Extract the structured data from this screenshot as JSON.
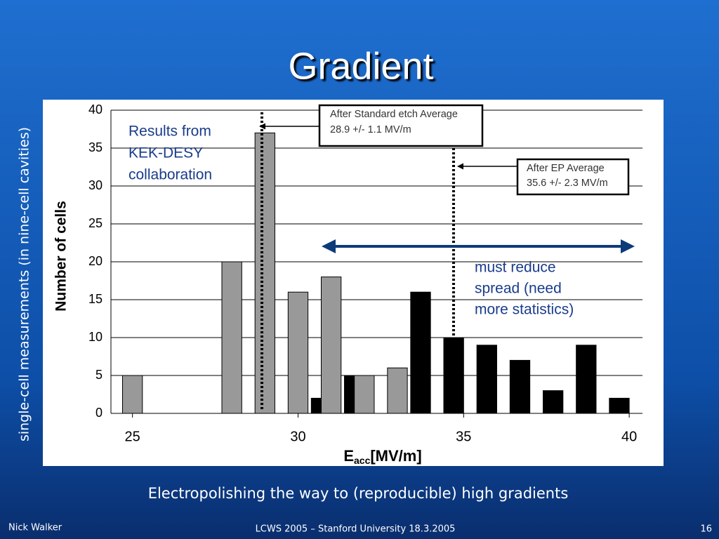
{
  "title": "Gradient",
  "side_label": "single-cell measurements (in nine-cell cavities)",
  "caption": "Electropolishing the way to (reproducible) high gradients",
  "footer": {
    "author": "Nick Walker",
    "event": "LCWS 2005 – Stanford University 18.3.2005",
    "page": "16"
  },
  "chart_data": {
    "type": "bar",
    "ylabel": "Number of cells",
    "xlabel": {
      "main": "E",
      "sub": "acc",
      "unit": "[MV/m]"
    },
    "xlim": [
      24.35,
      40.4
    ],
    "xticks": [
      25,
      30,
      35,
      40
    ],
    "ylim": [
      0,
      40
    ],
    "yticks": [
      0,
      5,
      10,
      15,
      20,
      25,
      30,
      35,
      40
    ],
    "grid": true,
    "series": [
      {
        "color": "#000000",
        "x": [
          30.7,
          31.7,
          33.7,
          34.7,
          35.7,
          36.7,
          37.7,
          38.7,
          39.7
        ],
        "values": [
          2,
          5,
          16,
          10,
          9,
          7,
          3,
          9,
          2
        ]
      },
      {
        "color": "#999999",
        "x": [
          25,
          28,
          29,
          30,
          31,
          32,
          33
        ],
        "values": [
          5,
          20,
          37,
          16,
          18,
          5,
          6
        ]
      }
    ],
    "annotations": {
      "etch_box": [
        "After Standard etch Average",
        "28.9 +/- 1.1 MV/m"
      ],
      "ep_box": [
        "After EP Average",
        "35.6 +/- 2.3 MV/m"
      ],
      "results": [
        "Results from",
        "KEK-DESY",
        "collaboration"
      ],
      "spread": [
        "must reduce",
        "spread (need",
        "more statistics)"
      ]
    }
  }
}
